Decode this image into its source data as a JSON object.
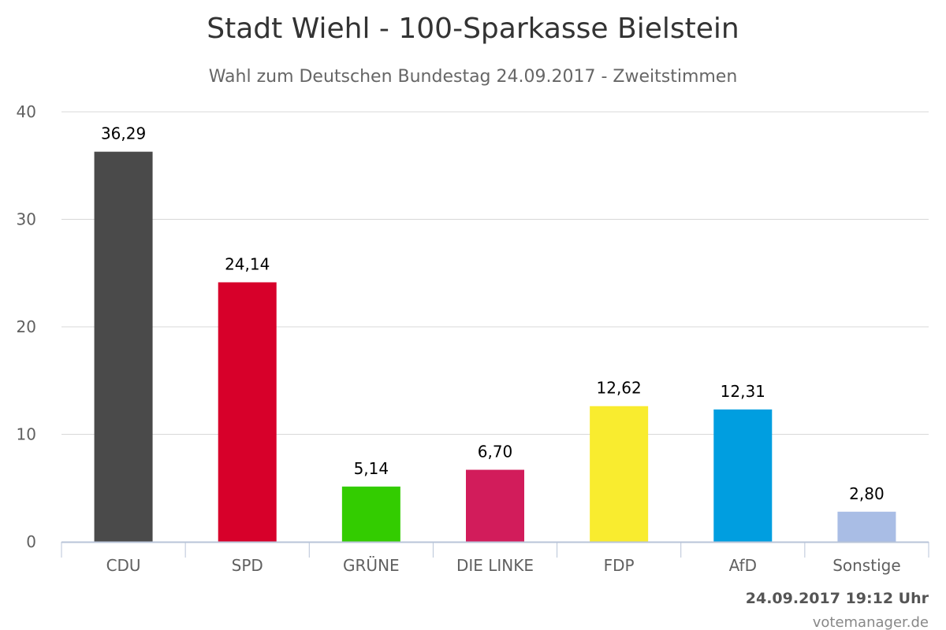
{
  "chart_data": {
    "type": "bar",
    "title": "Stadt Wiehl - 100-Sparkasse Bielstein",
    "subtitle": "Wahl zum Deutschen Bundestag 24.09.2017 - Zweitstimmen",
    "categories": [
      "CDU",
      "SPD",
      "GRÜNE",
      "DIE LINKE",
      "FDP",
      "AfD",
      "Sonstige"
    ],
    "values": [
      36.29,
      24.14,
      5.14,
      6.7,
      12.62,
      12.31,
      2.8
    ],
    "value_labels": [
      "36,29",
      "24,14",
      "5,14",
      "6,70",
      "12,62",
      "12,31",
      "2,80"
    ],
    "colors": [
      "#4a4a4a",
      "#d7002a",
      "#33cc00",
      "#d21c5b",
      "#f9ec2f",
      "#009ee0",
      "#a9bde5"
    ],
    "ylim": [
      0,
      40
    ],
    "yticks": [
      0,
      10,
      20,
      30,
      40
    ],
    "grid": true,
    "legend": "none"
  },
  "footer": {
    "timestamp": "24.09.2017 19:12 Uhr",
    "credit": "votemanager.de"
  }
}
